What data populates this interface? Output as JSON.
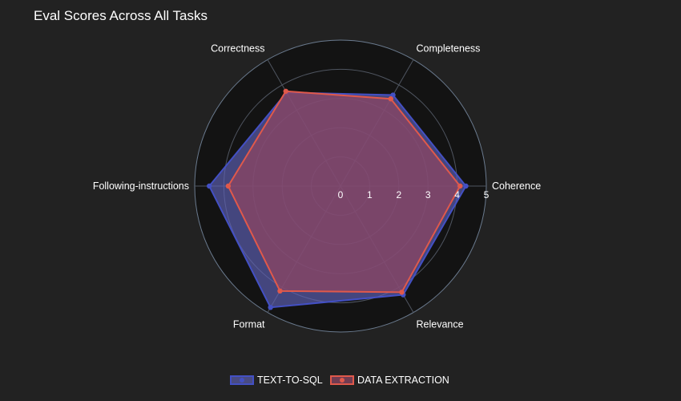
{
  "chart_data": {
    "type": "radar",
    "title": "Eval Scores Across All Tasks",
    "axes": [
      "Coherence",
      "Completeness",
      "Correctness",
      "Following-instructions",
      "Format",
      "Relevance"
    ],
    "radial_range": [
      0,
      5
    ],
    "radial_ticks": [
      "0",
      "1",
      "2",
      "3",
      "4",
      "5"
    ],
    "series": [
      {
        "name": "TEXT-TO-SQL",
        "values": [
          4.3,
          3.6,
          3.7,
          4.5,
          4.8,
          4.3
        ],
        "line_color": "#4350c4",
        "fill_color": "#5f62b8",
        "fill_opacity": 0.65
      },
      {
        "name": "DATA EXTRACTION",
        "values": [
          4.1,
          3.45,
          3.75,
          3.85,
          4.15,
          4.2
        ],
        "line_color": "#e0594b",
        "fill_color": "#8c4663",
        "fill_opacity": 0.75
      }
    ],
    "legend_position": "bottom-center",
    "grid": true
  }
}
